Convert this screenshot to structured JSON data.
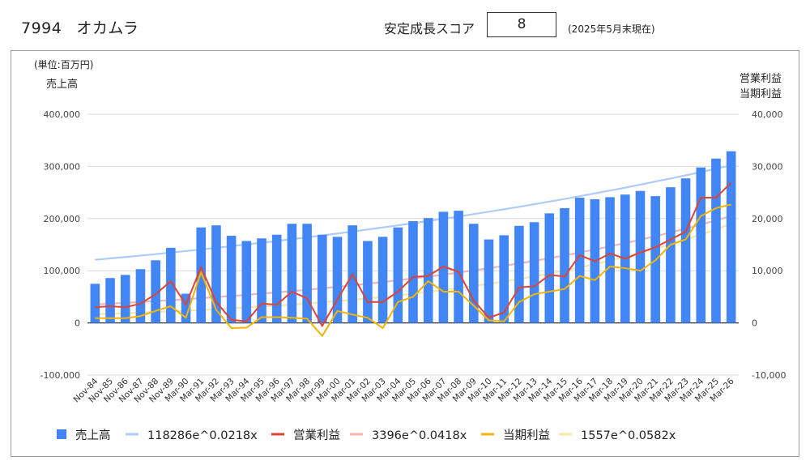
{
  "header": {
    "code": "7994",
    "company": "オカムラ",
    "score_label": "安定成長スコア",
    "score": "8",
    "as_of": "(2025年5月末現在)"
  },
  "chart_data": {
    "type": "bar",
    "unit_label": "(単位:百万円)",
    "left_axis_label": "売上高",
    "right_axis_label_1": "営業利益",
    "right_axis_label_2": "当期利益",
    "ylim_left": [
      -100000,
      400000
    ],
    "ylim_right": [
      -10000,
      40000
    ],
    "yticks_left": [
      "-100,000",
      "0",
      "100,000",
      "200,000",
      "300,000",
      "400,000"
    ],
    "yticks_right": [
      "-10,000",
      "0",
      "10,000",
      "20,000",
      "30,000",
      "40,000"
    ],
    "grid": true,
    "legend_position": "bottom",
    "categories": [
      "Nov-84",
      "Nov-85",
      "Nov-86",
      "Nov-87",
      "Nov-88",
      "Nov-89",
      "Mar-90",
      "Mar-91",
      "Mar-92",
      "Mar-93",
      "Mar-94",
      "Mar-95",
      "Mar-96",
      "Mar-97",
      "Mar-98",
      "Mar-99",
      "Mar-00",
      "Mar-01",
      "Mar-02",
      "Mar-03",
      "Mar-04",
      "Mar-05",
      "Mar-06",
      "Mar-07",
      "Mar-08",
      "Mar-09",
      "Mar-10",
      "Mar-11",
      "Mar-12",
      "Mar-13",
      "Mar-14",
      "Mar-15",
      "Mar-16",
      "Mar-17",
      "Mar-18",
      "Mar-19",
      "Mar-20",
      "Mar-21",
      "Mar-22",
      "Mar-23",
      "Mar-24",
      "Mar-25",
      "Mar-26"
    ],
    "series": [
      {
        "name": "売上高",
        "type": "bar",
        "axis": "left",
        "color": "#4285f4",
        "values": [
          75000,
          86000,
          92000,
          103000,
          120000,
          144000,
          56000,
          183000,
          187000,
          167000,
          157000,
          162000,
          169000,
          190000,
          190000,
          169000,
          165000,
          187000,
          157000,
          165000,
          183000,
          195000,
          201000,
          213000,
          215000,
          190000,
          160000,
          168000,
          186000,
          193000,
          210000,
          220000,
          240000,
          237000,
          241000,
          246000,
          253000,
          243000,
          260000,
          277000,
          298000,
          315000,
          329000
        ]
      },
      {
        "name": "118286e^0.0218x",
        "type": "trend",
        "axis": "left",
        "color": "#aecbfa",
        "a": 118286,
        "b": 0.0218
      },
      {
        "name": "営業利益",
        "type": "line",
        "axis": "right",
        "color": "#db4437",
        "values": [
          3000,
          3200,
          3000,
          3700,
          5500,
          8000,
          3500,
          10700,
          4000,
          600,
          300,
          3700,
          3500,
          6000,
          4700,
          -600,
          4500,
          9300,
          4000,
          4000,
          6000,
          8800,
          9000,
          10800,
          9800,
          4300,
          1000,
          2000,
          6800,
          7000,
          9200,
          8900,
          13000,
          11800,
          13300,
          12300,
          13500,
          14500,
          16000,
          17500,
          24000,
          24000,
          26900
        ]
      },
      {
        "name": "3396e^0.0418x",
        "type": "trend",
        "axis": "right",
        "color": "#f4b6b0",
        "a": 3396,
        "b": 0.0418
      },
      {
        "name": "当期利益",
        "type": "line",
        "axis": "right",
        "color": "#f4b400",
        "values": [
          900,
          900,
          900,
          1300,
          2300,
          3200,
          1000,
          9700,
          2500,
          -1000,
          -900,
          1100,
          1100,
          1000,
          800,
          -2500,
          2300,
          1600,
          1000,
          -1000,
          4000,
          5000,
          8000,
          6000,
          6000,
          3300,
          500,
          300,
          4000,
          5500,
          6000,
          6500,
          9000,
          8200,
          10800,
          10500,
          10000,
          12000,
          15000,
          16000,
          20500,
          22000,
          22700
        ]
      },
      {
        "name": "1557e^0.0582x",
        "type": "trend",
        "axis": "right",
        "color": "#fbe7a1",
        "a": 1557,
        "b": 0.0582
      }
    ]
  }
}
